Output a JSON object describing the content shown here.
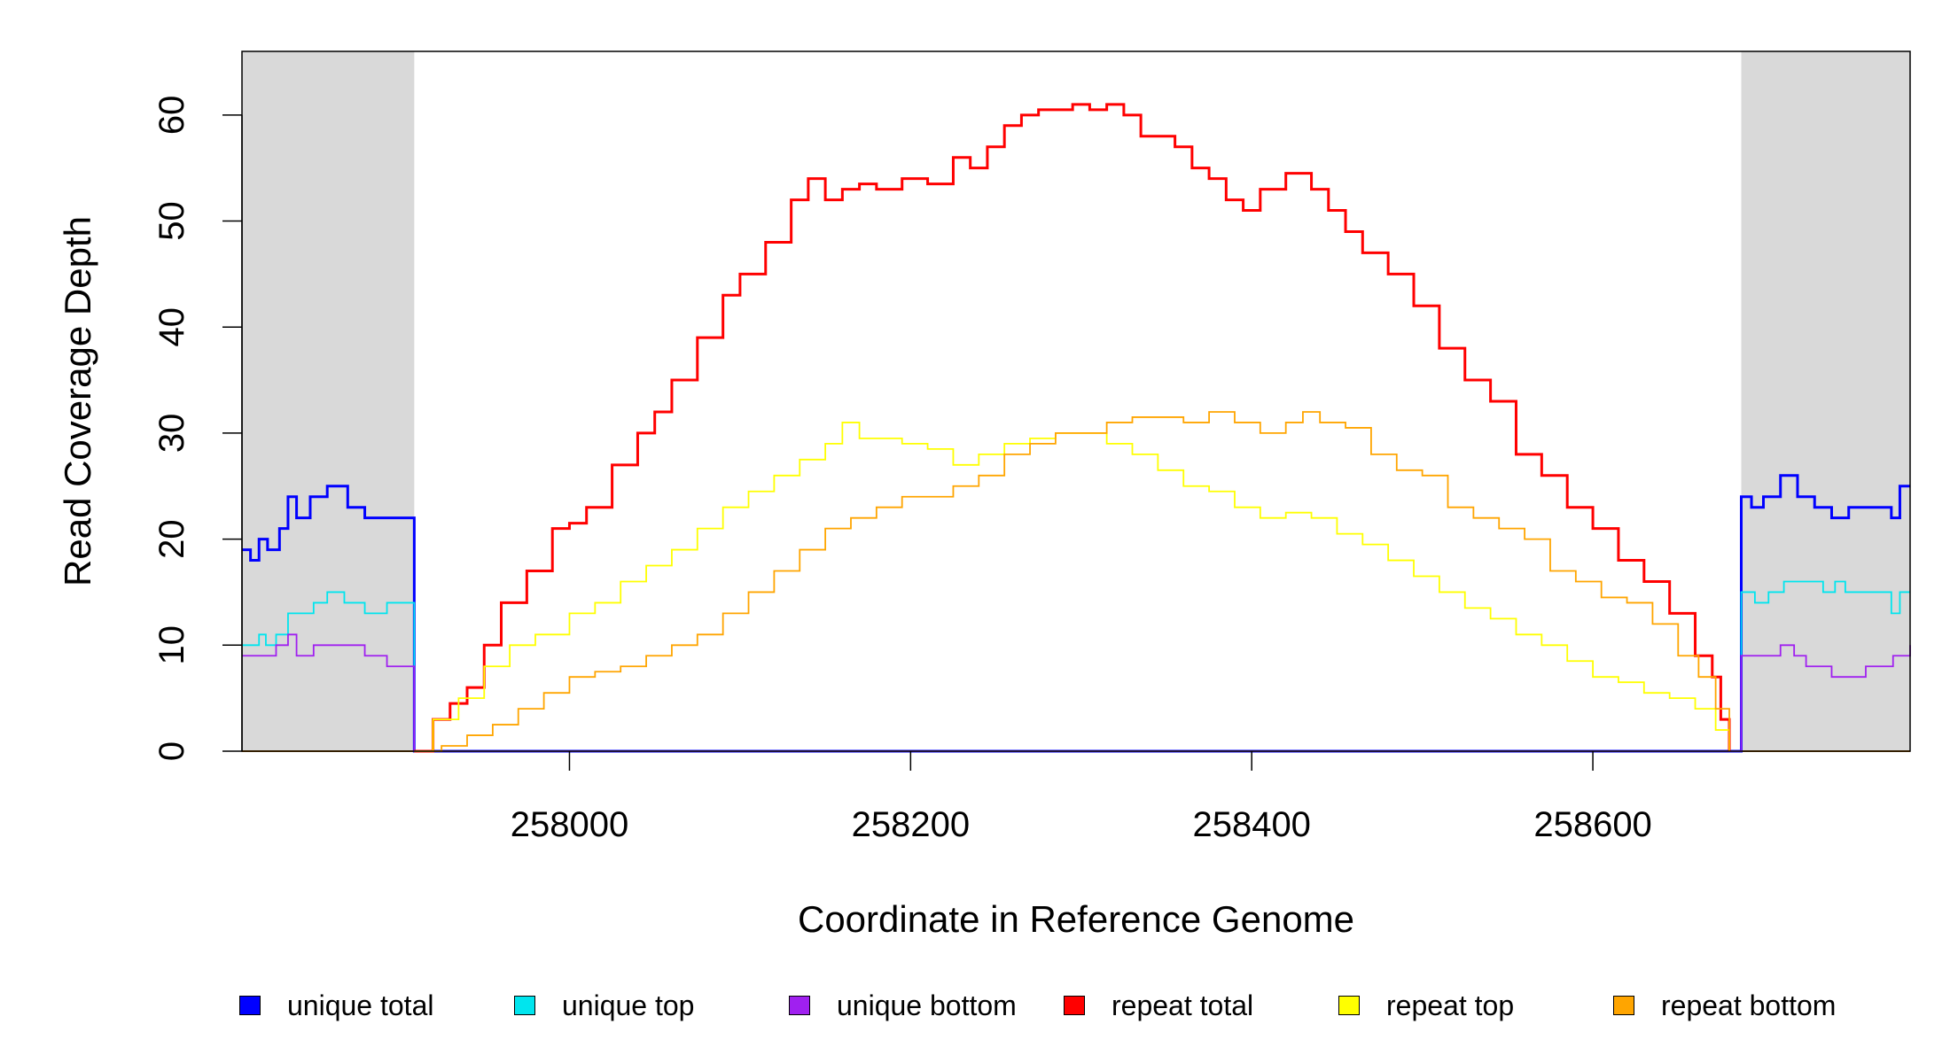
{
  "chart_data": {
    "type": "line",
    "title": "",
    "xlabel": "Coordinate in Reference Genome",
    "ylabel": "Read Coverage Depth",
    "xlim": [
      257808,
      258786
    ],
    "ylim": [
      0,
      66
    ],
    "x_ticks": [
      258000,
      258200,
      258400,
      258600
    ],
    "x_tick_labels": [
      "258000",
      "258200",
      "258400",
      "258600"
    ],
    "y_ticks": [
      0,
      10,
      20,
      30,
      40,
      50,
      60
    ],
    "y_tick_labels": [
      "0",
      "10",
      "20",
      "30",
      "40",
      "50",
      "60"
    ],
    "shaded_regions": [
      [
        257808,
        257909
      ],
      [
        258687,
        258786
      ]
    ],
    "shade_color": "#d9d9d9",
    "grid": false,
    "legend_position": "bottom",
    "series": [
      {
        "name": "unique total",
        "color": "#0000ff",
        "step": true,
        "width": 3,
        "x": [
          257808,
          257813,
          257818,
          257823,
          257830,
          257835,
          257840,
          257848,
          257858,
          257870,
          257880,
          257890,
          257908,
          257909,
          258685,
          258687,
          258693,
          258700,
          258710,
          258720,
          258730,
          258740,
          258750,
          258760,
          258775,
          258780,
          258786
        ],
        "y": [
          19,
          18,
          20,
          19,
          21,
          24,
          22,
          24,
          25,
          23,
          22,
          22,
          22,
          0,
          0,
          24,
          23,
          24,
          26,
          24,
          23,
          22,
          23,
          23,
          22,
          25,
          25
        ]
      },
      {
        "name": "unique top",
        "color": "#00e5ee",
        "step": true,
        "width": 1.8,
        "x": [
          257808,
          257818,
          257822,
          257828,
          257835,
          257850,
          257858,
          257868,
          257880,
          257893,
          257908,
          257909,
          258685,
          258687,
          258695,
          258703,
          258712,
          258735,
          258742,
          258748,
          258770,
          258775,
          258780,
          258786
        ],
        "y": [
          10,
          11,
          10,
          11,
          13,
          14,
          15,
          14,
          13,
          14,
          14,
          0,
          0,
          15,
          14,
          15,
          16,
          15,
          16,
          15,
          15,
          13,
          15,
          15
        ]
      },
      {
        "name": "unique bottom",
        "color": "#a020f0",
        "step": true,
        "width": 1.8,
        "x": [
          257808,
          257815,
          257828,
          257835,
          257840,
          257850,
          257870,
          257880,
          257893,
          257908,
          257909,
          258685,
          258687,
          258710,
          258718,
          258725,
          258740,
          258760,
          258776,
          258786
        ],
        "y": [
          9,
          9,
          10,
          11,
          9,
          10,
          10,
          9,
          8,
          8,
          0,
          0,
          9,
          10,
          9,
          8,
          7,
          8,
          9,
          10
        ]
      },
      {
        "name": "repeat total",
        "color": "#ff0000",
        "step": true,
        "width": 3,
        "x": [
          257909,
          257920,
          257930,
          257940,
          257950,
          257960,
          257975,
          257990,
          258000,
          258010,
          258025,
          258040,
          258050,
          258060,
          258075,
          258090,
          258100,
          258115,
          258130,
          258140,
          258150,
          258160,
          258170,
          258180,
          258195,
          258210,
          258225,
          258235,
          258245,
          258255,
          258265,
          258275,
          258285,
          258295,
          258305,
          258315,
          258325,
          258335,
          258345,
          258355,
          258365,
          258375,
          258385,
          258395,
          258405,
          258420,
          258435,
          258445,
          258455,
          258465,
          258480,
          258495,
          258510,
          258525,
          258540,
          258555,
          258570,
          258585,
          258600,
          258615,
          258630,
          258645,
          258660,
          258670,
          258675,
          258680
        ],
        "y": [
          0,
          3,
          4.5,
          6,
          10,
          14,
          17,
          21,
          21.5,
          23,
          27,
          30,
          32,
          35,
          39,
          43,
          45,
          48,
          52,
          54,
          52,
          53,
          53.5,
          53,
          54,
          53.5,
          56,
          55,
          57,
          59,
          60,
          60.5,
          60.5,
          61,
          60.5,
          61,
          60,
          58,
          58,
          57,
          55,
          54,
          52,
          51,
          53,
          54.5,
          53,
          51,
          49,
          47,
          45,
          42,
          38,
          35,
          33,
          28,
          26,
          23,
          21,
          18,
          16,
          13,
          9,
          7,
          3,
          0
        ]
      },
      {
        "name": "repeat top",
        "color": "#ffff00",
        "step": true,
        "width": 1.8,
        "x": [
          257909,
          257920,
          257935,
          257950,
          257965,
          257980,
          258000,
          258015,
          258030,
          258045,
          258060,
          258075,
          258090,
          258105,
          258120,
          258135,
          258150,
          258160,
          258170,
          258180,
          258195,
          258210,
          258225,
          258240,
          258255,
          258270,
          258285,
          258300,
          258315,
          258330,
          258345,
          258360,
          258375,
          258390,
          258405,
          258420,
          258435,
          258450,
          258465,
          258480,
          258495,
          258510,
          258525,
          258540,
          258555,
          258570,
          258585,
          258600,
          258615,
          258630,
          258645,
          258660,
          258672,
          258680
        ],
        "y": [
          0,
          3,
          5,
          8,
          10,
          11,
          13,
          14,
          16,
          17.5,
          19,
          21,
          23,
          24.5,
          26,
          27.5,
          29,
          31,
          29.5,
          29.5,
          29,
          28.5,
          27,
          28,
          29,
          29.5,
          30,
          30,
          29,
          28,
          26.5,
          25,
          24.5,
          23,
          22,
          22.5,
          22,
          20.5,
          19.5,
          18,
          16.5,
          15,
          13.5,
          12.5,
          11,
          10,
          8.5,
          7,
          6.5,
          5.5,
          5,
          4,
          2,
          0
        ]
      },
      {
        "name": "repeat bottom",
        "color": "#ffa500",
        "step": true,
        "width": 1.8,
        "x": [
          257909,
          257925,
          257940,
          257955,
          257970,
          257985,
          258000,
          258015,
          258030,
          258045,
          258060,
          258075,
          258090,
          258105,
          258120,
          258135,
          258150,
          258165,
          258180,
          258195,
          258210,
          258225,
          258240,
          258255,
          258270,
          258285,
          258300,
          258315,
          258330,
          258345,
          258360,
          258375,
          258390,
          258405,
          258420,
          258430,
          258440,
          258455,
          258470,
          258485,
          258500,
          258515,
          258530,
          258545,
          258560,
          258575,
          258590,
          258605,
          258620,
          258635,
          258650,
          258662,
          258672,
          258680
        ],
        "y": [
          0,
          0.5,
          1.5,
          2.5,
          4,
          5.5,
          7,
          7.5,
          8,
          9,
          10,
          11,
          13,
          15,
          17,
          19,
          21,
          22,
          23,
          24,
          24,
          25,
          26,
          28,
          29,
          30,
          30,
          31,
          31.5,
          31.5,
          31,
          32,
          31,
          30,
          31,
          32,
          31,
          30.5,
          28,
          26.5,
          26,
          23,
          22,
          21,
          20,
          17,
          16,
          14.5,
          14,
          12,
          9,
          7,
          4,
          0
        ]
      }
    ]
  }
}
